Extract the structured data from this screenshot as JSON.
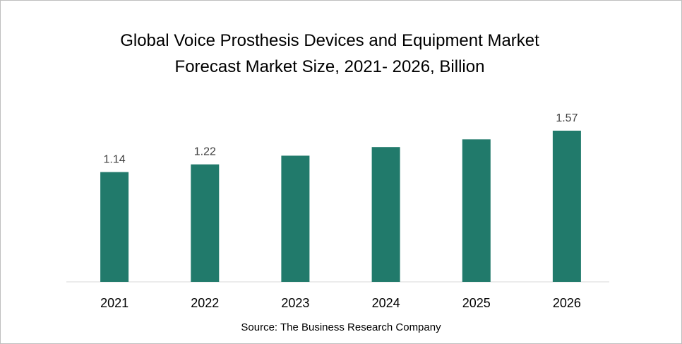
{
  "chart_data": {
    "type": "bar",
    "title_lines": [
      "Global Voice Prosthesis Devices and Equipment Market",
      "Forecast Market Size, 2021- 2026, Billion"
    ],
    "categories": [
      "2021",
      "2022",
      "2023",
      "2024",
      "2025",
      "2026"
    ],
    "values": [
      1.14,
      1.22,
      1.31,
      1.4,
      1.48,
      1.57
    ],
    "data_labels": [
      "1.14",
      "1.22",
      "",
      "",
      "",
      "1.57"
    ],
    "bar_color": "#217a6b",
    "ylim": [
      0,
      1.57
    ],
    "grid": false,
    "legend": "none",
    "source": "Source: The Business Research Company"
  }
}
